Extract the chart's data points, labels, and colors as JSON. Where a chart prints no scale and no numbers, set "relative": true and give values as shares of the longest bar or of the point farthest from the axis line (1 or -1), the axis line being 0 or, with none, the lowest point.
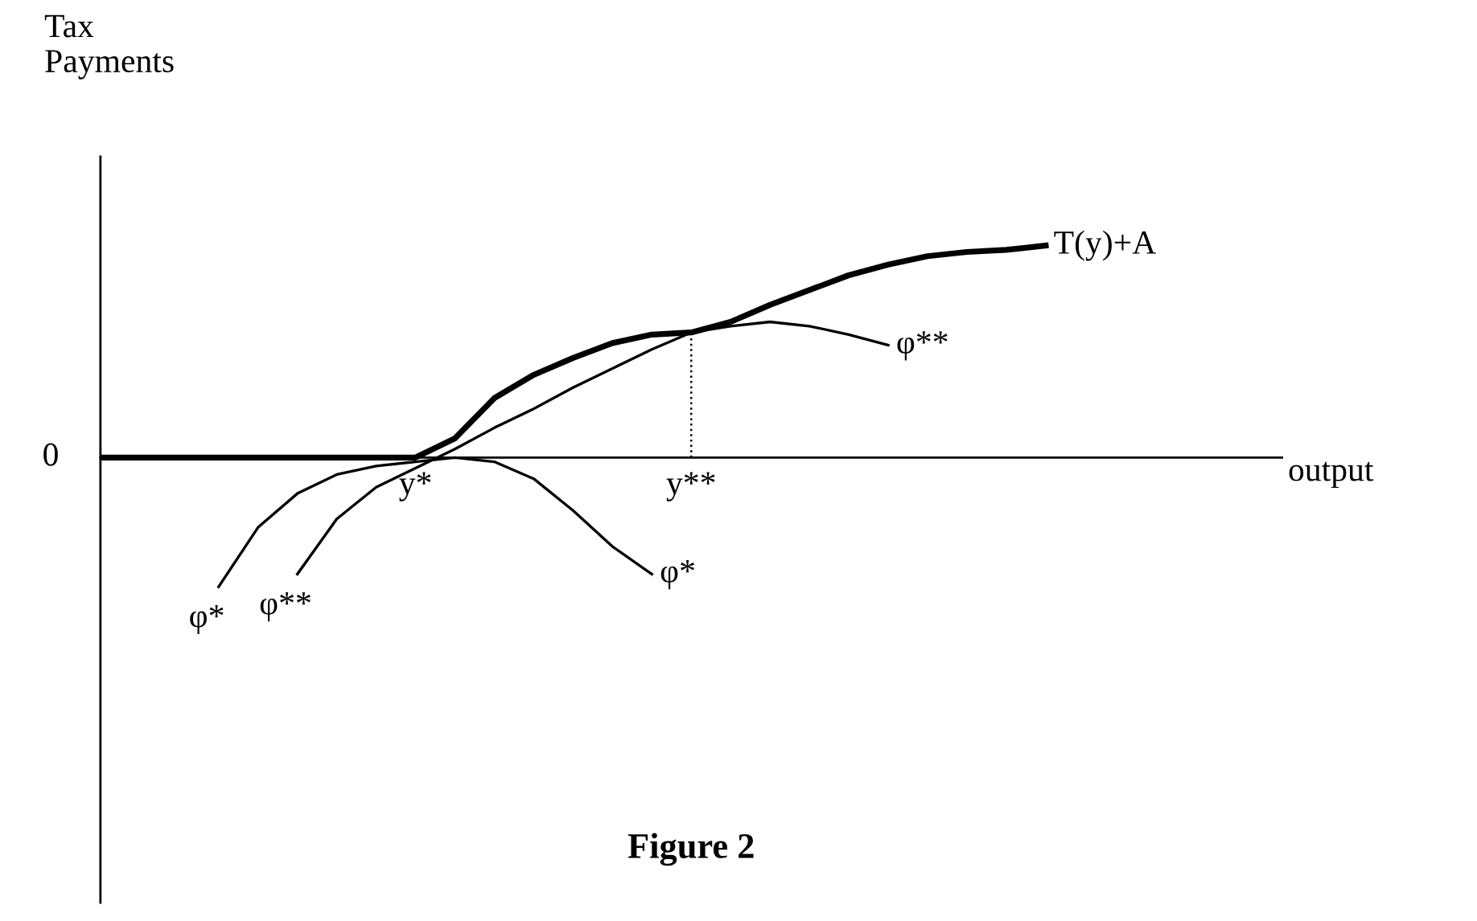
{
  "chart_data": {
    "type": "line",
    "relative": true,
    "title": "Figure 2",
    "ylabel": "Tax\nPayments",
    "xlabel": "output",
    "categories": [
      null,
      null,
      null,
      null,
      null,
      null,
      null,
      null,
      "y*",
      null,
      null,
      null,
      null,
      null,
      null,
      "y**",
      null,
      null,
      null,
      null,
      null,
      null,
      null,
      null,
      null,
      null,
      null,
      null,
      null,
      null,
      null
    ],
    "series": [
      {
        "name": "T(y)+A",
        "color": "#000000",
        "values": [
          0,
          0,
          0,
          0,
          0,
          0,
          0,
          0,
          0,
          0.09,
          0.28,
          0.39,
          0.47,
          0.54,
          0.58,
          0.59,
          0.64,
          0.72,
          0.79,
          0.86,
          0.91,
          0.95,
          0.97,
          0.98,
          1.0,
          null,
          null,
          null,
          null,
          null,
          null
        ]
      },
      {
        "name": "φ**",
        "color": "#000000",
        "values": [
          null,
          null,
          null,
          null,
          null,
          -0.55,
          -0.29,
          -0.14,
          -0.05,
          0.04,
          0.14,
          0.23,
          0.33,
          0.42,
          0.51,
          0.59,
          0.62,
          0.64,
          0.62,
          0.58,
          0.53,
          null,
          null,
          null,
          null,
          null,
          null,
          null,
          null,
          null,
          null
        ]
      },
      {
        "name": "φ*",
        "color": "#000000",
        "values": [
          null,
          null,
          null,
          -0.61,
          -0.33,
          -0.17,
          -0.08,
          -0.04,
          -0.02,
          0,
          -0.02,
          -0.1,
          -0.25,
          -0.42,
          -0.55,
          null,
          null,
          null,
          null,
          null,
          null,
          null,
          null,
          null,
          null,
          null,
          null,
          null,
          null,
          null,
          null
        ]
      }
    ],
    "ref_lines": [
      {
        "axis": "x",
        "value": "y**",
        "line_style": "dotted"
      }
    ],
    "annotations": [
      "0"
    ],
    "grid": false,
    "legend": false
  }
}
